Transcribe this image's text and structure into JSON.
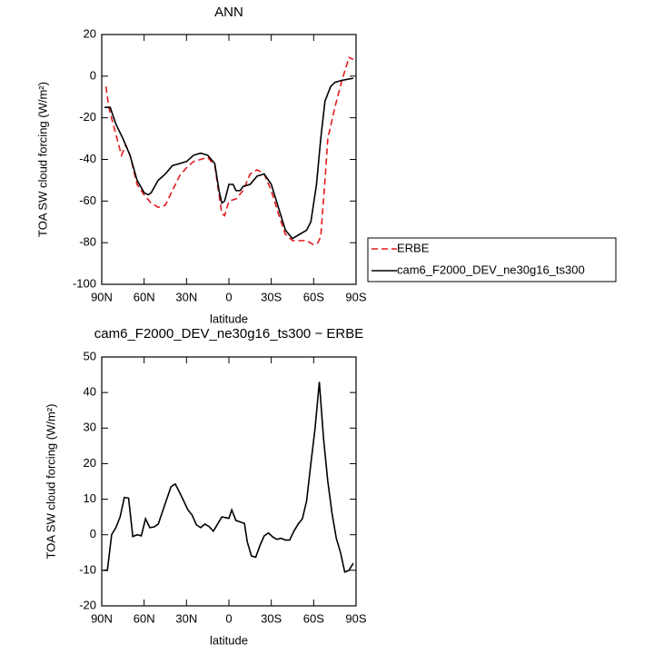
{
  "chart_data": [
    {
      "type": "line",
      "title": "ANN",
      "x_label": "latitude",
      "y_label": "TOA SW cloud forcing (W/m²)",
      "xlim": [
        90,
        -90
      ],
      "xticks": [
        {
          "value": 90,
          "label": "90N"
        },
        {
          "value": 60,
          "label": "60N"
        },
        {
          "value": 30,
          "label": "30N"
        },
        0,
        {
          "value": -30,
          "label": "30S"
        },
        {
          "value": -60,
          "label": "60S"
        },
        {
          "value": -90,
          "label": "90S"
        }
      ],
      "ylim": [
        -100,
        20
      ],
      "yticks": [
        -100,
        -80,
        -60,
        -40,
        -20,
        0,
        20
      ],
      "legend": "outside-right",
      "series": [
        {
          "name": "ERBE",
          "color": "#e41a1c",
          "dash": "dashed",
          "x": [
            87,
            85,
            80,
            76,
            73,
            70,
            65,
            60,
            55,
            50,
            45,
            40,
            35,
            30,
            25,
            20,
            15,
            10,
            5,
            3,
            0,
            -5,
            -10,
            -15,
            -20,
            -25,
            -30,
            -35,
            -40,
            -45,
            -50,
            -55,
            -60,
            -63,
            -65,
            -68,
            -70,
            -75,
            -80,
            -85,
            -88
          ],
          "values": [
            -5,
            -15,
            -28,
            -38,
            -33,
            -38,
            -52,
            -57,
            -61,
            -63,
            -62,
            -55,
            -48,
            -44,
            -41,
            -40,
            -39,
            -43,
            -66,
            -67,
            -60,
            -59,
            -55,
            -47,
            -45,
            -47,
            -55,
            -66,
            -76,
            -79,
            -79,
            -79,
            -81,
            -80,
            -77,
            -50,
            -30,
            -15,
            -2,
            9,
            8
          ]
        },
        {
          "name": "cam6_F2000_DEV_ne30g16_ts300",
          "color": "#000000",
          "dash": "solid",
          "x": [
            88,
            84,
            80,
            75,
            70,
            65,
            60,
            57,
            55,
            50,
            45,
            40,
            35,
            30,
            25,
            20,
            15,
            10,
            7,
            5,
            3,
            0,
            -3,
            -5,
            -8,
            -10,
            -15,
            -20,
            -25,
            -30,
            -35,
            -40,
            -45,
            -50,
            -55,
            -58,
            -62,
            -65,
            -68,
            -72,
            -75,
            -80,
            -88
          ],
          "values": [
            -15,
            -15,
            -23,
            -30,
            -38,
            -50,
            -56,
            -57,
            -56,
            -50,
            -47,
            -43,
            -42,
            -41,
            -38,
            -37,
            -38,
            -42,
            -55,
            -61,
            -60,
            -52,
            -52,
            -55,
            -55,
            -53,
            -52,
            -48,
            -47,
            -52,
            -63,
            -74,
            -78,
            -76,
            -74,
            -70,
            -52,
            -30,
            -12,
            -5,
            -3,
            -2,
            -1
          ]
        }
      ]
    },
    {
      "type": "line",
      "title": "cam6_F2000_DEV_ne30g16_ts300 − ERBE",
      "x_label": "latitude",
      "y_label": "TOA SW cloud forcing (W/m²)",
      "xlim": [
        90,
        -90
      ],
      "xticks": [
        {
          "value": 90,
          "label": "90N"
        },
        {
          "value": 60,
          "label": "60N"
        },
        {
          "value": 30,
          "label": "30N"
        },
        0,
        {
          "value": -30,
          "label": "30S"
        },
        {
          "value": -60,
          "label": "60S"
        },
        {
          "value": -90,
          "label": "90S"
        }
      ],
      "ylim": [
        -20,
        50
      ],
      "yticks": [
        -20,
        -10,
        0,
        10,
        20,
        30,
        40,
        50
      ],
      "series": [
        {
          "color": "#000000",
          "dash": "solid",
          "x": [
            89,
            86,
            83,
            80,
            77,
            74,
            71,
            68,
            65,
            62,
            59,
            56,
            53,
            50,
            47,
            44,
            41,
            38,
            35,
            32,
            29,
            26,
            23,
            20,
            17,
            14,
            11,
            8,
            5,
            2,
            0,
            -2,
            -5,
            -8,
            -11,
            -13,
            -16,
            -19,
            -22,
            -25,
            -28,
            -31,
            -34,
            -37,
            -40,
            -43,
            -46,
            -49,
            -52,
            -55,
            -58,
            -61,
            -64,
            -67,
            -70,
            -73,
            -76,
            -79,
            -82,
            -85,
            -88
          ],
          "values": [
            -10,
            -10,
            0,
            2,
            5,
            10.5,
            10.3,
            -0.5,
            0,
            -0.3,
            4.5,
            2,
            2.2,
            3,
            6.5,
            10,
            13.5,
            14.3,
            12,
            9.5,
            7,
            5.5,
            2.8,
            2,
            3,
            2.3,
            1,
            3,
            5,
            4.8,
            4.6,
            7,
            4,
            3.6,
            3.2,
            -2,
            -6,
            -6.3,
            -3,
            -0.3,
            0.5,
            -0.6,
            -1.3,
            -1,
            -1.5,
            -1.5,
            1,
            3,
            4.5,
            9.5,
            20,
            30,
            43,
            27,
            15,
            6,
            -1,
            -5,
            -10.5,
            -10,
            -8
          ]
        }
      ]
    }
  ]
}
